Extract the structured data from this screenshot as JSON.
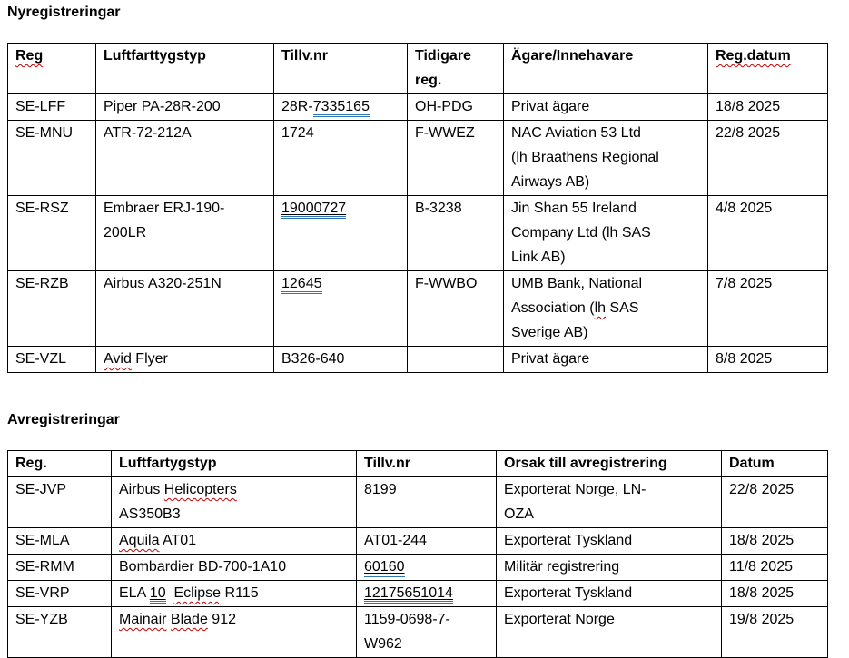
{
  "colors": {
    "spellcheck_red": "#C00000",
    "consistency_blue": "#2E75B6"
  },
  "sections": [
    {
      "title": "Nyregistreringar",
      "table": {
        "headers": [
          [
            {
              "t": "Reg",
              "s": "sp-red"
            }
          ],
          "Luftfarttygstyp",
          "Tillv.nr",
          "Tidigare\nreg.",
          "Ägare/Innehavare",
          [
            {
              "t": "Reg.datum",
              "s": "sp-red"
            }
          ]
        ],
        "rows": [
          [
            "SE-LFF",
            "Piper PA-28R-200",
            [
              {
                "t": "28R-"
              },
              {
                "t": "7335165",
                "s": "u-blue"
              }
            ],
            "OH-PDG",
            "Privat ägare",
            "18/8 2025"
          ],
          [
            "SE-MNU",
            "ATR-72-212A",
            "1724",
            "F-WWEZ",
            "NAC Aviation 53 Ltd\n(lh Braathens Regional\nAirways AB)",
            "22/8 2025"
          ],
          [
            "SE-RSZ",
            "Embraer ERJ-190-\n200LR",
            [
              {
                "t": "19000727",
                "s": "u-blue"
              }
            ],
            "B-3238",
            "Jin Shan 55 Ireland\nCompany Ltd (lh SAS\nLink AB)",
            "4/8 2025"
          ],
          [
            "SE-RZB",
            "Airbus A320-251N",
            [
              {
                "t": "12645",
                "s": "u-blue"
              }
            ],
            "F-WWBO",
            [
              {
                "t": "UMB Bank, National\nAssociation ("
              },
              {
                "t": "lh",
                "s": "sp-red"
              },
              {
                "t": " SAS\nSverige AB)"
              }
            ],
            "7/8 2025"
          ],
          [
            "SE-VZL",
            [
              {
                "t": "Avid",
                "s": "sp-red"
              },
              {
                "t": " Flyer"
              }
            ],
            "B326-640",
            "",
            "Privat ägare",
            "8/8 2025"
          ]
        ]
      }
    },
    {
      "title": "Avregistreringar",
      "table": {
        "headers": [
          "Reg.",
          "Luftfartygstyp",
          "Tillv.nr",
          "Orsak till avregistrering",
          "Datum"
        ],
        "rows": [
          [
            "SE-JVP",
            [
              {
                "t": "Airbus "
              },
              {
                "t": "Helicopters",
                "s": "sp-red"
              },
              {
                "t": "\nAS350B3"
              }
            ],
            "8199",
            "Exporterat Norge, LN-\nOZA",
            "22/8 2025"
          ],
          [
            "SE-MLA",
            [
              {
                "t": "Aquila",
                "s": "sp-red"
              },
              {
                "t": " AT01"
              }
            ],
            "AT01-244",
            "Exporterat Tyskland",
            "18/8 2025"
          ],
          [
            "SE-RMM",
            "Bombardier BD-700-1A10",
            [
              {
                "t": "60160",
                "s": "u-blue"
              }
            ],
            "Militär registrering",
            "11/8 2025"
          ],
          [
            "SE-VRP",
            [
              {
                "t": "ELA "
              },
              {
                "t": "10",
                "s": "u-blue"
              },
              {
                "t": "  "
              },
              {
                "t": "Eclipse",
                "s": "sp-red"
              },
              {
                "t": " R115"
              }
            ],
            [
              {
                "t": "12175651014",
                "s": "u-blue"
              }
            ],
            "Exporterat Tyskland",
            "18/8 2025"
          ],
          [
            "SE-YZB",
            [
              {
                "t": "Mainair",
                "s": "sp-red"
              },
              {
                "t": " "
              },
              {
                "t": "Blade",
                "s": "sp-red"
              },
              {
                "t": " 912"
              }
            ],
            "1159-0698-7-\nW962",
            "Exporterat Norge",
            "19/8 2025"
          ]
        ]
      }
    }
  ]
}
